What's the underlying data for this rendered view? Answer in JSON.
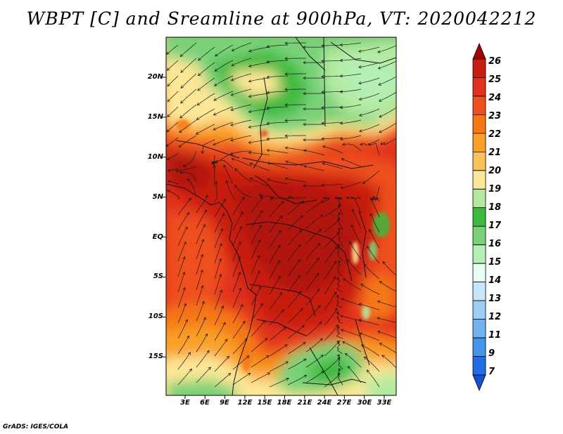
{
  "title": "WBPT [C] and Sreamline at 900hPa, VT: 2020042212",
  "footer": "GrADS: IGES/COLA",
  "map": {
    "latitude_labels": [
      "20N",
      "15N",
      "10N",
      "5N",
      "EQ",
      "5S",
      "10S",
      "15S"
    ],
    "longitude_labels": [
      "3E",
      "6E",
      "9E",
      "12E",
      "15E",
      "18E",
      "21E",
      "24E",
      "27E",
      "30E",
      "33E"
    ]
  },
  "colorbar": {
    "labels": [
      "26",
      "25",
      "24",
      "23",
      "22",
      "21",
      "20",
      "19",
      "18",
      "17",
      "16",
      "15",
      "14",
      "13",
      "12",
      "11",
      "9",
      "7"
    ],
    "colors": [
      "#a50000",
      "#c81e10",
      "#e0321e",
      "#ee501e",
      "#f57814",
      "#faa028",
      "#fac35a",
      "#fde796",
      "#b4eaa0",
      "#3cba3c",
      "#78d278",
      "#b4f0b4",
      "#e6fff0",
      "#c8e6fa",
      "#9ccdf5",
      "#6eb4f0",
      "#4196eb",
      "#1f6ee6",
      "#1450d2"
    ]
  }
}
